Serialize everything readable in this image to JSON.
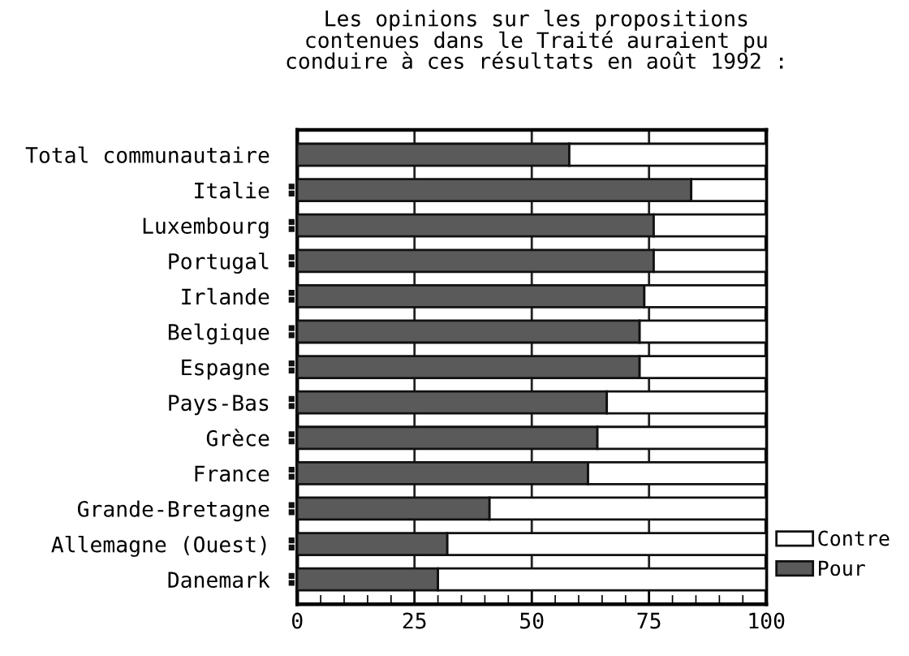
{
  "chart_data": {
    "type": "bar",
    "orientation": "horizontal",
    "stacked": true,
    "title": "Les opinions sur les propositions\ncontenues dans le Traité auraient pu\nconduire à ces résultats en août 1992 :",
    "categories": [
      "Total communautaire",
      "Italie",
      "Luxembourg",
      "Portugal",
      "Irlande",
      "Belgique",
      "Espagne",
      "Pays-Bas",
      "Grèce",
      "France",
      "Grande-Bretagne",
      "Allemagne (Ouest)",
      "Danemark"
    ],
    "series": [
      {
        "name": "Pour",
        "color": "#5a5a5a",
        "values": [
          58,
          84,
          76,
          76,
          74,
          73,
          73,
          66,
          64,
          62,
          41,
          32,
          30
        ]
      },
      {
        "name": "Contre",
        "color": "#ffffff",
        "values": [
          42,
          16,
          24,
          24,
          26,
          27,
          27,
          34,
          36,
          38,
          59,
          68,
          70
        ]
      }
    ],
    "xlim": [
      0,
      100
    ],
    "xticks": [
      0,
      25,
      50,
      75,
      100
    ],
    "grid": "x",
    "legend": "bottom right"
  }
}
